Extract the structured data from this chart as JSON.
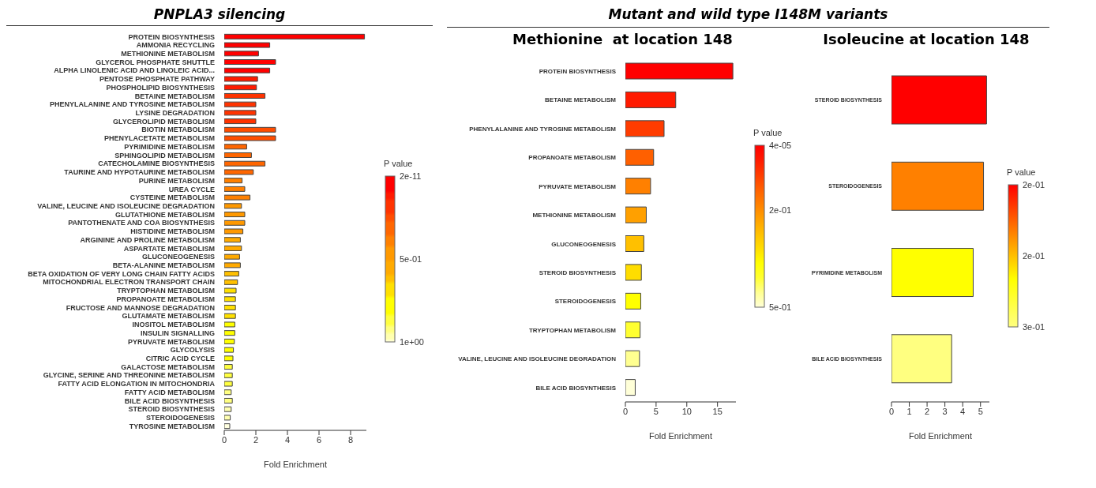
{
  "chart_data": [
    {
      "type": "bar",
      "title": "PNPLA3 silencing",
      "orientation": "horizontal",
      "xlabel": "Fold Enrichment",
      "categories": [
        "PROTEIN BIOSYNTHESIS",
        "AMMONIA RECYCLING",
        "METHIONINE METABOLISM",
        "GLYCEROL PHOSPHATE SHUTTLE",
        "ALPHA LINOLENIC ACID AND LINOLEIC ACID...",
        "PENTOSE PHOSPHATE PATHWAY",
        "PHOSPHOLIPID BIOSYNTHESIS",
        "BETAINE METABOLISM",
        "PHENYLALANINE AND TYROSINE METABOLISM",
        "LYSINE DEGRADATION",
        "GLYCEROLIPID METABOLISM",
        "BIOTIN METABOLISM",
        "PHENYLACETATE METABOLISM",
        "PYRIMIDINE METABOLISM",
        "SPHINGOLIPID METABOLISM",
        "CATECHOLAMINE BIOSYNTHESIS",
        "TAURINE AND HYPOTAURINE METABOLISM",
        "PURINE METABOLISM",
        "UREA CYCLE",
        "CYSTEINE METABOLISM",
        "VALINE, LEUCINE AND ISOLEUCINE DEGRADATION",
        "GLUTATHIONE METABOLISM",
        "PANTOTHENATE AND COA BIOSYNTHESIS",
        "HISTIDINE METABOLISM",
        "ARGININE AND PROLINE METABOLISM",
        "ASPARTATE METABOLISM",
        "GLUCONEOGENESIS",
        "BETA-ALANINE METABOLISM",
        "BETA OXIDATION OF VERY LONG CHAIN FATTY ACIDS",
        "MITOCHONDRIAL ELECTRON TRANSPORT CHAIN",
        "TRYPTOPHAN METABOLISM",
        "PROPANOATE METABOLISM",
        "FRUCTOSE AND MANNOSE DEGRADATION",
        "GLUTAMATE METABOLISM",
        "INOSITOL METABOLISM",
        "INSULIN SIGNALLING",
        "PYRUVATE METABOLISM",
        "GLYCOLYSIS",
        "CITRIC ACID CYCLE",
        "GALACTOSE METABOLISM",
        "GLYCINE, SERINE AND THREONINE METABOLISM",
        "FATTY ACID ELONGATION IN MITOCHONDRIA",
        "FATTY ACID METABOLISM",
        "BILE ACID BIOSYNTHESIS",
        "STEROID BIOSYNTHESIS",
        "STEROIDOGENESIS",
        "TYROSINE METABOLISM"
      ],
      "values": [
        8.88,
        2.88,
        2.17,
        3.25,
        2.88,
        2.11,
        2.04,
        2.58,
        2.0,
        2.0,
        2.0,
        3.25,
        3.25,
        1.42,
        1.72,
        2.58,
        1.84,
        1.13,
        1.3,
        1.63,
        1.09,
        1.3,
        1.3,
        1.18,
        1.02,
        1.09,
        0.97,
        1.02,
        0.92,
        0.84,
        0.75,
        0.71,
        0.71,
        0.71,
        0.67,
        0.67,
        0.64,
        0.58,
        0.55,
        0.51,
        0.51,
        0.51,
        0.44,
        0.51,
        0.44,
        0.38,
        0.35
      ],
      "colors": [
        "#ff0000",
        "#ff0000",
        "#ff0000",
        "#ff0000",
        "#ff0000",
        "#ff1a00",
        "#ff1a00",
        "#ff3300",
        "#ff3300",
        "#ff3300",
        "#ff3300",
        "#ff4d00",
        "#ff4d00",
        "#ff6600",
        "#ff6600",
        "#ff6600",
        "#ff6600",
        "#ff8000",
        "#ff8000",
        "#ff8000",
        "#ff9900",
        "#ff9900",
        "#ff9900",
        "#ff9900",
        "#ffaa00",
        "#ffaa00",
        "#ffaa00",
        "#ffaa00",
        "#ffc000",
        "#ffc000",
        "#ffe000",
        "#ffe000",
        "#ffe000",
        "#ffe000",
        "#ffff00",
        "#ffff00",
        "#ffff00",
        "#ffff00",
        "#ffff00",
        "#ffff40",
        "#ffff40",
        "#ffff40",
        "#ffff80",
        "#ffff80",
        "#ffffb0",
        "#ffffb0",
        "#ffffe0"
      ],
      "xlim": [
        0,
        9
      ],
      "xticks": [
        0,
        2,
        4,
        6,
        8
      ],
      "clabel": "P value",
      "clim": [
        1,
        2e-11
      ],
      "cticks": [
        {
          "value": 2e-11,
          "label": "2e-11"
        },
        {
          "value": 0.5,
          "label": "5e-01"
        },
        {
          "value": 1,
          "label": "1e+00"
        }
      ]
    },
    {
      "type": "bar",
      "subtitle": "Mutant and wild type I148M variants",
      "title": "Methionine  at location 148",
      "orientation": "horizontal",
      "xlabel": "Fold Enrichment",
      "categories": [
        "PROTEIN BIOSYNTHESIS",
        "BETAINE METABOLISM",
        "PHENYLALANINE AND TYROSINE METABOLISM",
        "PROPANOATE METABOLISM",
        "PYRUVATE METABOLISM",
        "METHIONINE METABOLISM",
        "GLUCONEOGENESIS",
        "STEROID BIOSYNTHESIS",
        "STEROIDOGENESIS",
        "TRYPTOPHAN METABOLISM",
        "VALINE, LEUCINE AND ISOLEUCINE DEGRADATION",
        "BILE ACID BIOSYNTHESIS"
      ],
      "values": [
        17.5,
        8.2,
        6.3,
        4.6,
        4.1,
        3.4,
        3.0,
        2.6,
        2.5,
        2.4,
        2.3,
        1.6
      ],
      "colors": [
        "#ff0000",
        "#ff1a00",
        "#ff3c00",
        "#ff6000",
        "#ff8000",
        "#ffa000",
        "#ffc000",
        "#ffdd00",
        "#ffff00",
        "#ffff30",
        "#ffff90",
        "#ffffd8"
      ],
      "xlim": [
        0,
        18
      ],
      "xticks": [
        0,
        5,
        10,
        15
      ],
      "clabel": "P value",
      "clim": [
        0.5,
        4e-05
      ],
      "cticks": [
        {
          "value": 4e-05,
          "label": "4e-05"
        },
        {
          "value": 0.2,
          "label": "2e-01"
        },
        {
          "value": 0.5,
          "label": "5e-01"
        }
      ]
    },
    {
      "type": "bar",
      "title": "Isoleucine at location 148",
      "orientation": "horizontal",
      "xlabel": "Fold Enrichment",
      "categories": [
        "STEROID BIOSYNTHESIS",
        "STEROIDOGENESIS",
        "PYRIMIDINE METABOLISM",
        "BILE ACID BIOSYNTHESIS"
      ],
      "values": [
        5.34,
        5.17,
        4.59,
        3.38
      ],
      "colors": [
        "#ff0000",
        "#ff8000",
        "#ffff00",
        "#ffff80"
      ],
      "xlim": [
        0,
        5.5
      ],
      "xticks": [
        0,
        1,
        2,
        3,
        4,
        5
      ],
      "clabel": "P value",
      "clim": [
        0.3,
        0.2
      ],
      "cticks": [
        {
          "value": 0.2,
          "label": "2e-01"
        },
        {
          "value": 0.25,
          "label": "2e-01"
        },
        {
          "value": 0.3,
          "label": "3e-01"
        }
      ]
    }
  ]
}
